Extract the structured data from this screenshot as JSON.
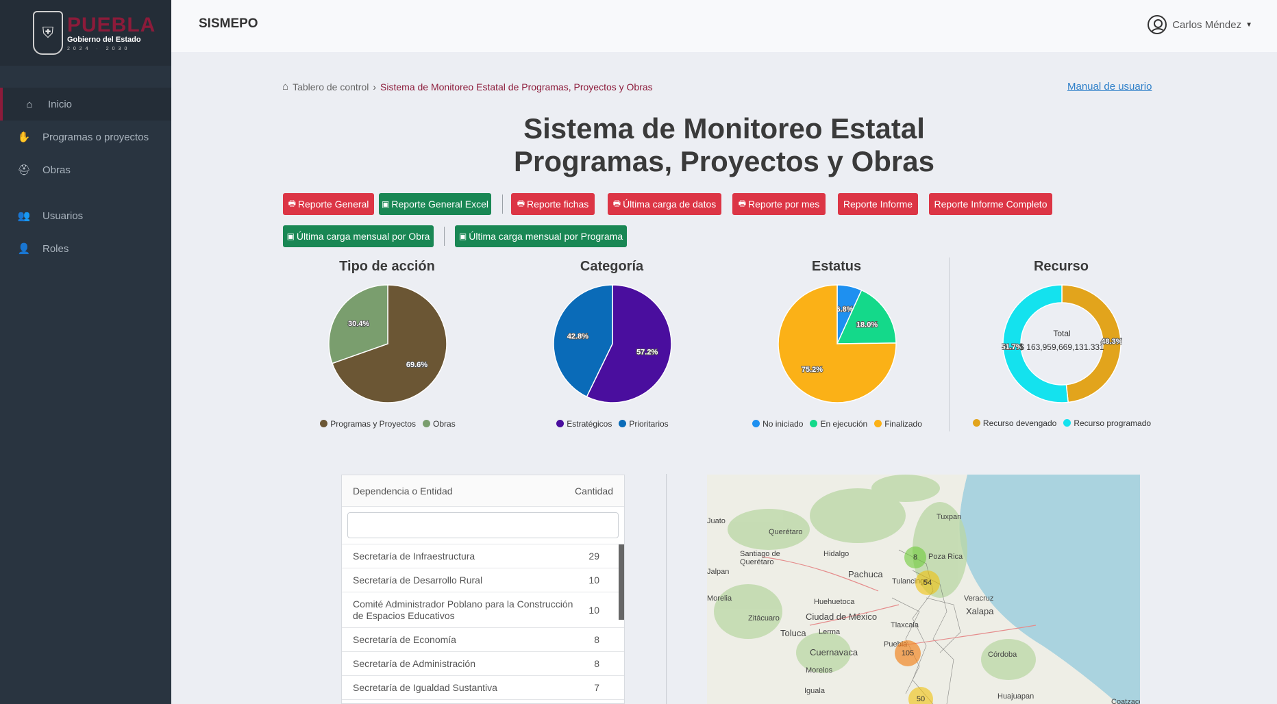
{
  "logo": {
    "name": "PUEBLA",
    "subtitle": "Gobierno del Estado",
    "years": "2024 · 2030"
  },
  "header": {
    "app_title": "SISMEPO",
    "user_name": "Carlos Méndez"
  },
  "sidebar": {
    "items": [
      {
        "label": "Inicio",
        "icon": "home-icon"
      },
      {
        "label": "Programas o proyectos",
        "icon": "hand-icon"
      },
      {
        "label": "Obras",
        "icon": "helmet-icon"
      },
      {
        "label": "Usuarios",
        "icon": "users-icon"
      },
      {
        "label": "Roles",
        "icon": "user-roles-icon"
      }
    ]
  },
  "breadcrumb": {
    "root": "Tablero de control",
    "current": "Sistema de Monitoreo Estatal de Programas, Proyectos y Obras"
  },
  "manual_link": "Manual de usuario",
  "title": {
    "line1": "Sistema de Monitoreo Estatal",
    "line2": "Programas, Proyectos y Obras"
  },
  "buttons": {
    "reporte_general": "Reporte General",
    "reporte_general_excel": "Reporte General Excel",
    "reporte_fichas": "Reporte fichas",
    "ultima_carga": "Última carga de datos",
    "reporte_mes": "Reporte por mes",
    "reporte_informe": "Reporte Informe",
    "reporte_informe_completo": "Reporte Informe Completo",
    "carga_obra": "Última carga mensual por Obra",
    "carga_programa": "Última carga mensual por Programa"
  },
  "chart_data": [
    {
      "type": "pie",
      "title": "Tipo de acción",
      "categories": [
        "Programas y Proyectos",
        "Obras"
      ],
      "values": [
        69.6,
        30.4
      ],
      "labels": [
        "69.6%",
        "30.4%"
      ],
      "colors": [
        "#6b5634",
        "#7a9e6e"
      ]
    },
    {
      "type": "pie",
      "title": "Categoría",
      "categories": [
        "Estratégicos",
        "Prioritarios"
      ],
      "values": [
        57.2,
        42.8
      ],
      "labels": [
        "57.2%",
        "42.8%"
      ],
      "colors": [
        "#4a0e9e",
        "#0a6bb8"
      ]
    },
    {
      "type": "pie",
      "title": "Estatus",
      "categories": [
        "No iniciado",
        "En ejecución",
        "Finalizado"
      ],
      "values": [
        6.8,
        18.0,
        75.2
      ],
      "labels": [
        "6.8%",
        "18.0%",
        "75.2%"
      ],
      "colors": [
        "#1e90f0",
        "#14d98a",
        "#fbb117"
      ]
    },
    {
      "type": "pie",
      "title": "Recurso",
      "categories": [
        "Recurso devengado",
        "Recurso programado"
      ],
      "values": [
        48.3,
        51.7
      ],
      "labels": [
        "48.3%",
        "51.7%"
      ],
      "colors": [
        "#e2a41c",
        "#14e2ee"
      ],
      "center_label": "Total",
      "center_value": "$ 163,959,669,131.331"
    }
  ],
  "table": {
    "col_name": "Dependencia o Entidad",
    "col_count": "Cantidad",
    "search_value": "",
    "rows": [
      {
        "name": "Secretaría de Infraestructura",
        "count": "29"
      },
      {
        "name": "Secretaría de Desarrollo Rural",
        "count": "10"
      },
      {
        "name": "Comité Administrador Poblano para la Construcción de Espacios Educativos",
        "count": "10"
      },
      {
        "name": "Secretaría de Economía",
        "count": "8"
      },
      {
        "name": "Secretaría de Administración",
        "count": "8"
      },
      {
        "name": "Secretaría de Igualdad Sustantiva",
        "count": "7"
      }
    ]
  },
  "map": {
    "labels": [
      "Querétaro",
      "Santiago de Querétaro",
      "Hidalgo",
      "Pachuca",
      "Tuxpan",
      "Poza Rica",
      "Tulancingo",
      "Huehuetoca",
      "Ciudad de México",
      "Zitácuaro",
      "Toluca",
      "Lerma",
      "Cuernavaca",
      "Morelos",
      "Iguala",
      "Veracruz",
      "Xalapa",
      "Córdoba",
      "Tlaxcala",
      "Puebla",
      "Huajuapan",
      "Coatzacoalcos",
      "Morelia",
      "Juato",
      "Jalpan"
    ],
    "clusters": [
      "8",
      "54",
      "105",
      "50"
    ]
  }
}
